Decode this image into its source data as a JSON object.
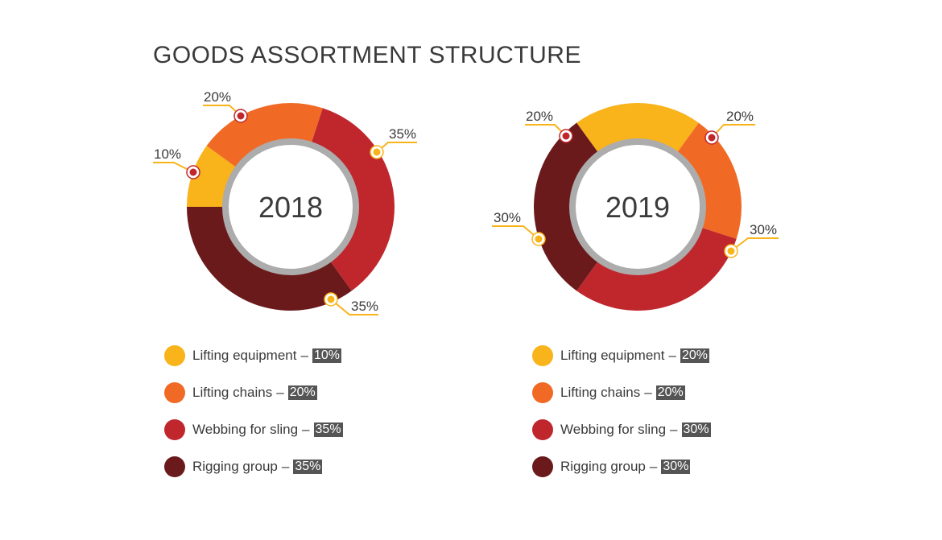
{
  "title": "GOODS ASSORTMENT STRUCTURE",
  "colors": {
    "lifting_equipment": "#F9B31B",
    "lifting_chains": "#F06A25",
    "webbing_for_sling": "#C0272D",
    "rigging_group": "#6B1A1C",
    "inner_ring": "#ACACAC",
    "callout_line": "#F9B31B"
  },
  "chart_data": [
    {
      "type": "donut",
      "center_label": "2018",
      "categories": [
        "Lifting equipment",
        "Lifting chains",
        "Webbing for sling",
        "Rigging group"
      ],
      "values": [
        10,
        20,
        35,
        35
      ],
      "value_labels": [
        "10%",
        "20%",
        "35%",
        "35%"
      ],
      "legend": [
        {
          "label": "Lifting equipment",
          "dash": "–",
          "pct": "10%"
        },
        {
          "label": "Lifting chains",
          "dash": "–",
          "pct": "20%"
        },
        {
          "label": "Webbing for sling",
          "dash": "–",
          "pct": "35%"
        },
        {
          "label": "Rigging group",
          "dash": "–",
          "pct": "35%"
        }
      ]
    },
    {
      "type": "donut",
      "center_label": "2019",
      "categories": [
        "Lifting equipment",
        "Lifting chains",
        "Webbing for sling",
        "Rigging group"
      ],
      "values": [
        20,
        20,
        30,
        30
      ],
      "value_labels": [
        "20%",
        "20%",
        "30%",
        "30%"
      ],
      "legend": [
        {
          "label": "Lifting equipment",
          "dash": "–",
          "pct": "20%"
        },
        {
          "label": "Lifting chains",
          "dash": "–",
          "pct": "20%"
        },
        {
          "label": "Webbing for sling",
          "dash": "–",
          "pct": "30%"
        },
        {
          "label": "Rigging group",
          "dash": "–",
          "pct": "30%"
        }
      ]
    }
  ]
}
